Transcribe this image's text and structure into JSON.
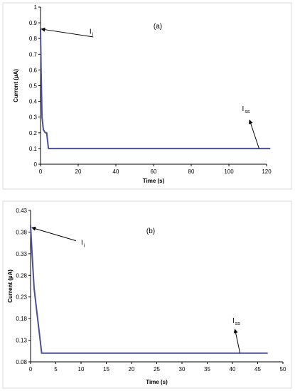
{
  "chart_data": [
    {
      "type": "line",
      "panel_label": "(a)",
      "xlabel": "Time (s)",
      "ylabel": "Current (µA)",
      "xlim": [
        0,
        120
      ],
      "ylim": [
        0,
        1
      ],
      "xticks": [
        0,
        20,
        40,
        60,
        80,
        100,
        120
      ],
      "yticks": [
        0,
        0.1,
        0.2,
        0.3,
        0.4,
        0.5,
        0.6,
        0.7,
        0.8,
        0.9,
        1
      ],
      "ytick_labels": [
        "0",
        "0.1",
        "0.2",
        "0.3",
        "0.4",
        "0.5",
        "0.6",
        "0.7",
        "0.8",
        "0.9",
        "1"
      ],
      "xtick_labels": [
        "0",
        "20",
        "40",
        "60",
        "80",
        "100",
        "120"
      ],
      "grid": false,
      "series": [
        {
          "color": "#4a4f9a",
          "x": [
            0,
            0.3,
            0.8,
            1.5,
            2.5,
            3.3,
            4.2,
            122
          ],
          "y": [
            0.86,
            0.6,
            0.3,
            0.22,
            0.2,
            0.2,
            0.1,
            0.1
          ]
        }
      ],
      "annotations": [
        {
          "main": "I",
          "sub": "i",
          "text_x": 26,
          "text_y": 0.83,
          "arrow_from": [
            28,
            0.81
          ],
          "arrow_to": [
            0.5,
            0.86
          ]
        },
        {
          "main": "I",
          "sub": "ss",
          "text_x": 107,
          "text_y": 0.34,
          "arrow_from": [
            116,
            0.1
          ],
          "arrow_to": [
            111,
            0.28
          ]
        }
      ]
    },
    {
      "type": "line",
      "panel_label": "(b)",
      "xlabel": "Time (s)",
      "ylabel": "Current (µA)",
      "xlim": [
        0,
        50
      ],
      "ylim": [
        0.08,
        0.43
      ],
      "xticks": [
        0,
        5,
        10,
        15,
        20,
        25,
        30,
        35,
        40,
        45,
        50
      ],
      "yticks": [
        0.08,
        0.13,
        0.18,
        0.23,
        0.28,
        0.33,
        0.38,
        0.43
      ],
      "ytick_labels": [
        "0.08",
        "0.13",
        "0.18",
        "0.23",
        "0.28",
        "0.33",
        "0.38",
        "0.43"
      ],
      "xtick_labels": [
        "0",
        "5",
        "10",
        "15",
        "20",
        "25",
        "30",
        "35",
        "40",
        "45",
        "50"
      ],
      "grid": false,
      "series": [
        {
          "color": "#4a4f9a",
          "x": [
            0,
            0.3,
            0.7,
            1.2,
            1.7,
            2.2,
            47
          ],
          "y": [
            0.395,
            0.33,
            0.25,
            0.2,
            0.15,
            0.1,
            0.1
          ]
        }
      ],
      "annotations": [
        {
          "main": "I",
          "sub": "i",
          "text_x": 10,
          "text_y": 0.35,
          "arrow_from": [
            9,
            0.36
          ],
          "arrow_to": [
            0.3,
            0.39
          ]
        },
        {
          "main": "I",
          "sub": "ss",
          "text_x": 40,
          "text_y": 0.17,
          "arrow_from": [
            41.5,
            0.1
          ],
          "arrow_to": [
            40.5,
            0.155
          ]
        }
      ]
    }
  ]
}
